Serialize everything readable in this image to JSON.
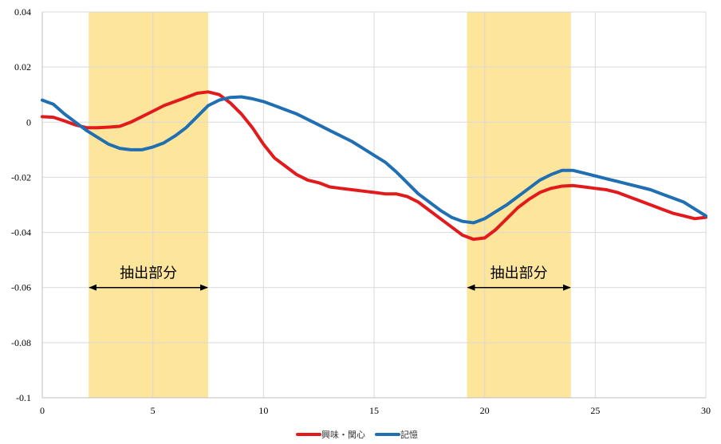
{
  "chart_data": {
    "type": "line",
    "title": "",
    "xlabel": "",
    "ylabel": "",
    "xlim": [
      0,
      30
    ],
    "ylim": [
      -0.1,
      0.04
    ],
    "x_ticks": [
      0,
      5,
      10,
      15,
      20,
      25,
      30
    ],
    "x_tick_labels": [
      "0",
      "5",
      "10",
      "15",
      "20",
      "25",
      "30"
    ],
    "y_ticks": [
      0.04,
      0.02,
      0,
      -0.02,
      -0.04,
      -0.06,
      -0.08,
      -0.1
    ],
    "y_tick_labels": [
      "0.04",
      "0.02",
      "0",
      "-0.02",
      "-0.04",
      "-0.06",
      "-0.08",
      "-0.1"
    ],
    "grid": true,
    "legend_position": "bottom",
    "series": [
      {
        "name": "興味・関心",
        "color": "#e31a1c",
        "x": [
          0,
          0.5,
          1,
          1.5,
          2,
          2.5,
          3,
          3.5,
          4,
          4.5,
          5,
          5.5,
          6,
          6.5,
          7,
          7.5,
          8,
          8.5,
          9,
          9.5,
          10,
          10.5,
          11,
          11.5,
          12,
          12.5,
          13,
          13.5,
          14,
          14.5,
          15,
          15.5,
          16,
          16.5,
          17,
          17.5,
          18,
          18.5,
          19,
          19.5,
          20,
          20.5,
          21,
          21.5,
          22,
          22.5,
          23,
          23.5,
          24,
          24.5,
          25,
          25.5,
          26,
          26.5,
          27,
          27.5,
          28,
          28.5,
          29,
          29.5,
          30
        ],
        "y": [
          0.002,
          0.0018,
          0.0005,
          -0.001,
          -0.002,
          -0.002,
          -0.0018,
          -0.0015,
          0.0,
          0.002,
          0.004,
          0.006,
          0.0075,
          0.009,
          0.0105,
          0.011,
          0.01,
          0.007,
          0.003,
          -0.002,
          -0.008,
          -0.013,
          -0.016,
          -0.019,
          -0.021,
          -0.022,
          -0.0235,
          -0.024,
          -0.0245,
          -0.025,
          -0.0255,
          -0.026,
          -0.026,
          -0.027,
          -0.029,
          -0.032,
          -0.035,
          -0.038,
          -0.041,
          -0.0425,
          -0.042,
          -0.039,
          -0.035,
          -0.031,
          -0.028,
          -0.0255,
          -0.024,
          -0.0232,
          -0.023,
          -0.0235,
          -0.024,
          -0.0245,
          -0.0255,
          -0.027,
          -0.0285,
          -0.03,
          -0.0315,
          -0.033,
          -0.034,
          -0.035,
          -0.0345
        ]
      },
      {
        "name": "記憶",
        "color": "#1f6fb2",
        "x": [
          0,
          0.5,
          1,
          1.5,
          2,
          2.5,
          3,
          3.5,
          4,
          4.5,
          5,
          5.5,
          6,
          6.5,
          7,
          7.5,
          8,
          8.5,
          9,
          9.5,
          10,
          10.5,
          11,
          11.5,
          12,
          12.5,
          13,
          13.5,
          14,
          14.5,
          15,
          15.5,
          16,
          16.5,
          17,
          17.5,
          18,
          18.5,
          19,
          19.5,
          20,
          20.5,
          21,
          21.5,
          22,
          22.5,
          23,
          23.5,
          24,
          24.5,
          25,
          25.5,
          26,
          26.5,
          27,
          27.5,
          28,
          28.5,
          29,
          29.5,
          30
        ],
        "y": [
          0.008,
          0.0065,
          0.003,
          0.0,
          -0.003,
          -0.0055,
          -0.008,
          -0.0095,
          -0.01,
          -0.01,
          -0.009,
          -0.0075,
          -0.005,
          -0.002,
          0.002,
          0.006,
          0.008,
          0.009,
          0.0092,
          0.0085,
          0.0075,
          0.006,
          0.0045,
          0.003,
          0.001,
          -0.001,
          -0.003,
          -0.005,
          -0.007,
          -0.0095,
          -0.012,
          -0.0145,
          -0.018,
          -0.022,
          -0.026,
          -0.029,
          -0.032,
          -0.0345,
          -0.036,
          -0.0365,
          -0.035,
          -0.0325,
          -0.03,
          -0.027,
          -0.024,
          -0.021,
          -0.019,
          -0.0175,
          -0.0175,
          -0.0185,
          -0.0195,
          -0.0205,
          -0.0215,
          -0.0225,
          -0.0235,
          -0.0245,
          -0.026,
          -0.0275,
          -0.029,
          -0.0315,
          -0.034
        ]
      }
    ],
    "highlight_bands": [
      {
        "x_start": 2.1,
        "x_end": 7.5,
        "label": "抽出部分",
        "color": "#fde59c"
      },
      {
        "x_start": 19.2,
        "x_end": 23.9,
        "label": "抽出部分",
        "color": "#fde59c"
      }
    ],
    "annotation_y": -0.06
  }
}
